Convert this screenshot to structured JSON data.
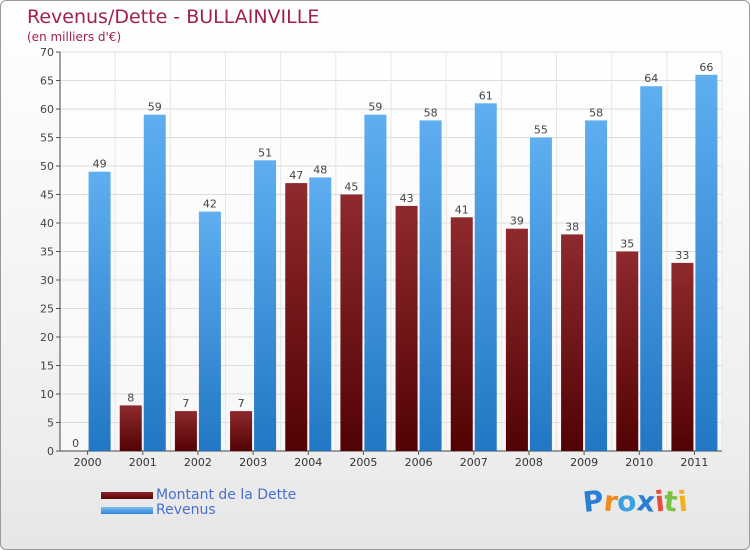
{
  "chart_data": {
    "type": "bar",
    "title": "Revenus/Dette - BULLAINVILLE",
    "subtitle": "(en milliers d'€)",
    "categories": [
      "2000",
      "2001",
      "2002",
      "2003",
      "2004",
      "2005",
      "2006",
      "2007",
      "2008",
      "2009",
      "2010",
      "2011"
    ],
    "series": [
      {
        "name": "Montant de la Dette",
        "color": "#6e0f12",
        "values": [
          0,
          8,
          7,
          7,
          47,
          45,
          43,
          41,
          39,
          38,
          35,
          33
        ]
      },
      {
        "name": "Revenus",
        "color": "#3d9ae3",
        "values": [
          49,
          59,
          42,
          51,
          48,
          59,
          58,
          61,
          55,
          58,
          64,
          66
        ]
      }
    ],
    "ylim": [
      0,
      70
    ],
    "yticks": [
      0,
      5,
      10,
      15,
      20,
      25,
      30,
      35,
      40,
      45,
      50,
      55,
      60,
      65,
      70
    ],
    "grid": true,
    "legend_position": "bottom-left"
  },
  "logo": {
    "text": "Proxiti",
    "colors": [
      "#2a7fd4",
      "#f08a1c",
      "#3aa0e0",
      "#2a7fd4",
      "#e84c3a",
      "#7cc242",
      "#f2b21c"
    ]
  }
}
